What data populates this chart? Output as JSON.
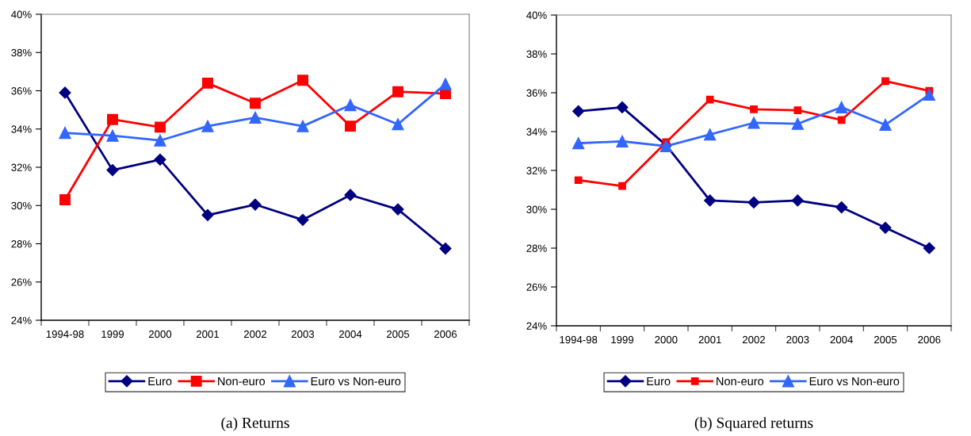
{
  "chart_data": [
    {
      "type": "line",
      "categories": [
        "1994-98",
        "1999",
        "2000",
        "2001",
        "2002",
        "2003",
        "2004",
        "2005",
        "2006"
      ],
      "series": [
        {
          "name": "Euro",
          "color": "#000080",
          "marker": "diamond",
          "values": [
            35.9,
            31.85,
            32.4,
            29.5,
            30.05,
            29.25,
            30.55,
            29.8,
            27.75
          ]
        },
        {
          "name": "Non-euro",
          "color": "#ff0000",
          "marker": "square",
          "values": [
            30.3,
            34.5,
            34.1,
            36.4,
            35.35,
            36.55,
            34.15,
            35.95,
            35.85
          ]
        },
        {
          "name": "Euro vs Non-euro",
          "color": "#3366ff",
          "marker": "triangle",
          "values": [
            33.8,
            33.65,
            33.4,
            34.15,
            34.6,
            34.15,
            35.25,
            34.25,
            36.35
          ]
        }
      ],
      "ylim": [
        24,
        40
      ],
      "yticks": [
        {
          "value": 24,
          "label": "24%"
        },
        {
          "value": 26,
          "label": "26%"
        },
        {
          "value": 28,
          "label": "28%"
        },
        {
          "value": 30,
          "label": "30%"
        },
        {
          "value": 32,
          "label": "32%"
        },
        {
          "value": 34,
          "label": "34%"
        },
        {
          "value": 36,
          "label": "36%"
        },
        {
          "value": 38,
          "label": "38%"
        },
        {
          "value": 40,
          "label": "40%"
        }
      ],
      "grid": false,
      "legend": "bottom",
      "annotations": [
        "(a) Returns"
      ]
    },
    {
      "type": "line",
      "categories": [
        "1994-98",
        "1999",
        "2000",
        "2001",
        "2002",
        "2003",
        "2004",
        "2005",
        "2006"
      ],
      "series": [
        {
          "name": "Euro",
          "color": "#000080",
          "marker": "diamond",
          "values": [
            35.05,
            35.25,
            33.3,
            30.45,
            30.35,
            30.45,
            30.1,
            29.05,
            28.0
          ]
        },
        {
          "name": "Non-euro",
          "color": "#ff0000",
          "marker": "square",
          "values": [
            31.5,
            31.2,
            33.45,
            35.65,
            35.15,
            35.1,
            34.6,
            36.6,
            36.1
          ]
        },
        {
          "name": "Euro vs Non-euro",
          "color": "#3366ff",
          "marker": "triangle",
          "values": [
            33.4,
            33.5,
            33.25,
            33.85,
            34.45,
            34.4,
            35.25,
            34.35,
            35.9
          ]
        }
      ],
      "ylim": [
        24,
        40
      ],
      "yticks": [
        {
          "value": 24,
          "label": "24%"
        },
        {
          "value": 26,
          "label": "26%"
        },
        {
          "value": 28,
          "label": "28%"
        },
        {
          "value": 30,
          "label": "30%"
        },
        {
          "value": 32,
          "label": "32%"
        },
        {
          "value": 34,
          "label": "34%"
        },
        {
          "value": 36,
          "label": "36%"
        },
        {
          "value": 38,
          "label": "38%"
        },
        {
          "value": 40,
          "label": "40%"
        }
      ],
      "grid": false,
      "legend": "bottom",
      "annotations": [
        "(b) Squared returns"
      ]
    }
  ]
}
